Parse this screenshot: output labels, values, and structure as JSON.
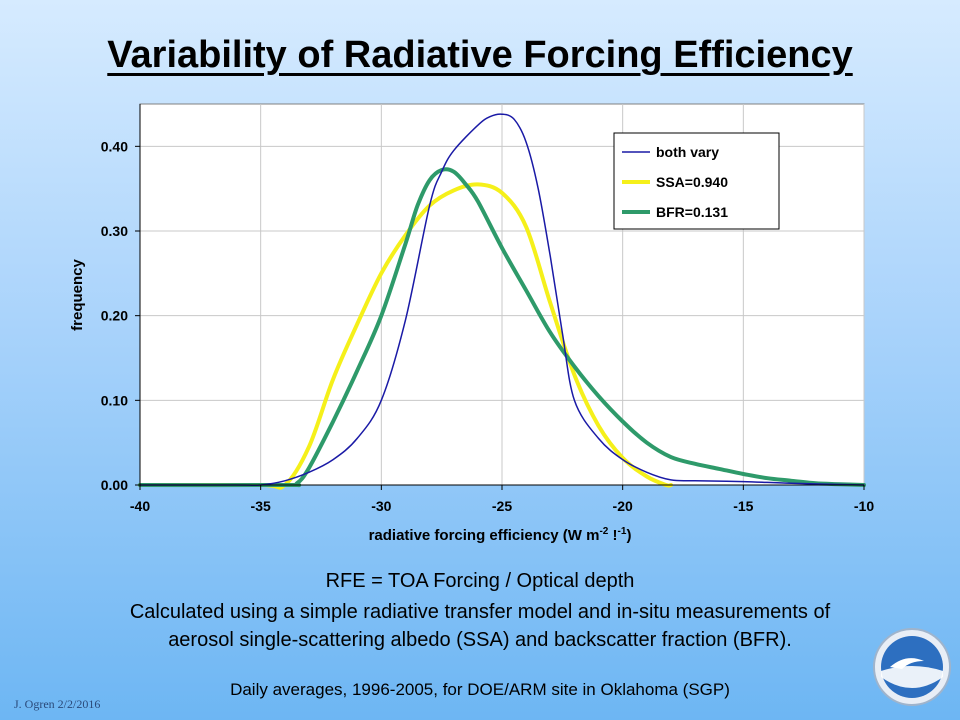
{
  "slide": {
    "title": "Variability of Radiative Forcing Efficiency",
    "caption_line1": "RFE = TOA Forcing / Optical depth",
    "caption_line2": "Calculated using a simple radiative transfer model and in-situ measurements of",
    "caption_line3": "aerosol single-scattering albedo (SSA) and backscatter fraction (BFR).",
    "caption_line4": "Daily averages, 1996-2005, for DOE/ARM site in Oklahoma  (SGP)",
    "author": "J. Ogren  2/2/2016",
    "logo_text": "NOAA"
  },
  "chart_data": {
    "type": "line",
    "title": "",
    "xlabel": "radiative forcing efficiency (W m",
    "xlabel_sup1": "-2",
    "xlabel_mid": " !",
    "xlabel_sup2": "-1",
    "xlabel_end": ")",
    "ylabel": "frequency",
    "xlim": [
      -40,
      -10
    ],
    "ylim": [
      0,
      0.45
    ],
    "xticks": [
      -40,
      -35,
      -30,
      -25,
      -20,
      -15,
      -10
    ],
    "xtick_labels": [
      "-40",
      "-35",
      "-30",
      "-25",
      "-20",
      "-15",
      "-10"
    ],
    "yticks": [
      0,
      0.1,
      0.2,
      0.3,
      0.4
    ],
    "ytick_labels": [
      "0.00",
      "0.10",
      "0.20",
      "0.30",
      "0.40"
    ],
    "grid": true,
    "legend_position": "top-right",
    "series": [
      {
        "name": "both vary",
        "color": "#1a1aa6",
        "x": [
          -40,
          -36,
          -35,
          -34,
          -33,
          -32,
          -31,
          -30,
          -29,
          -28,
          -27.5,
          -27,
          -26,
          -25.5,
          -25,
          -24.5,
          -24,
          -23.5,
          -23,
          -22.5,
          -22,
          -21,
          -20,
          -19,
          -18,
          -17,
          -15,
          -13,
          -10
        ],
        "y": [
          0,
          0,
          0.0,
          0.005,
          0.015,
          0.03,
          0.055,
          0.1,
          0.195,
          0.33,
          0.37,
          0.395,
          0.425,
          0.435,
          0.438,
          0.432,
          0.405,
          0.35,
          0.27,
          0.18,
          0.1,
          0.055,
          0.03,
          0.015,
          0.006,
          0.005,
          0.004,
          0.002,
          0
        ]
      },
      {
        "name": "SSA=0.940",
        "color": "#f5f01a",
        "x": [
          -40,
          -35,
          -34,
          -33,
          -32,
          -31,
          -30,
          -29,
          -28,
          -27,
          -26,
          -25,
          -24,
          -23,
          -22,
          -21,
          -20,
          -19,
          -18.2,
          -18
        ],
        "y": [
          0,
          0,
          0.0,
          0.045,
          0.125,
          0.19,
          0.25,
          0.295,
          0.33,
          0.348,
          0.355,
          0.345,
          0.305,
          0.215,
          0.13,
          0.07,
          0.032,
          0.01,
          0.0,
          0
        ]
      },
      {
        "name": "BFR=0.131",
        "color": "#2e9a6a",
        "x": [
          -40,
          -34,
          -33.5,
          -33,
          -32,
          -31,
          -30,
          -29,
          -28.5,
          -28,
          -27.5,
          -27,
          -26.5,
          -26,
          -25,
          -24,
          -23,
          -22,
          -21,
          -20,
          -19,
          -18,
          -17,
          -16,
          -15,
          -14,
          -13,
          -12,
          -11,
          -10
        ],
        "y": [
          0,
          0,
          0.002,
          0.02,
          0.075,
          0.135,
          0.2,
          0.285,
          0.33,
          0.36,
          0.372,
          0.37,
          0.355,
          0.335,
          0.28,
          0.23,
          0.18,
          0.14,
          0.105,
          0.075,
          0.05,
          0.033,
          0.025,
          0.019,
          0.013,
          0.008,
          0.005,
          0.002,
          0.001,
          0
        ]
      }
    ]
  }
}
